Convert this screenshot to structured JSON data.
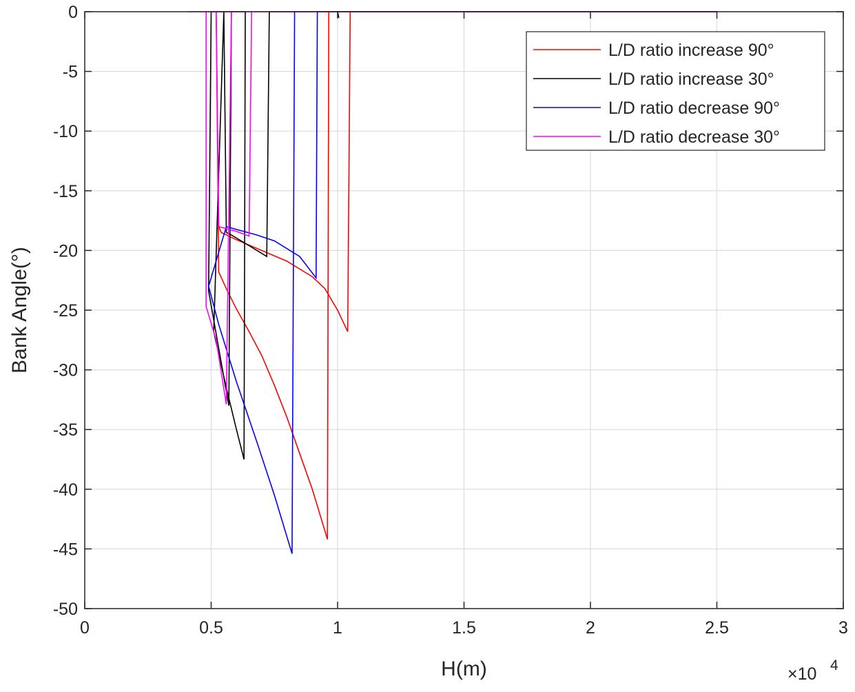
{
  "chart_data": {
    "type": "line",
    "title": "",
    "xlabel": "H(m)",
    "ylabel": "Bank Angle(°)",
    "x_exponent_base": "×10",
    "x_exponent_power": "4",
    "xlim": [
      0,
      30000
    ],
    "ylim": [
      -50,
      0
    ],
    "x_ticks": [
      0,
      5000,
      10000,
      15000,
      20000,
      25000,
      30000
    ],
    "x_tick_labels": [
      "0",
      "0.5",
      "1",
      "1.5",
      "2",
      "2.5",
      "3"
    ],
    "y_ticks": [
      0,
      -5,
      -10,
      -15,
      -20,
      -25,
      -30,
      -35,
      -40,
      -45,
      -50
    ],
    "y_tick_labels": [
      "0",
      "-5",
      "-10",
      "-15",
      "-20",
      "-25",
      "-30",
      "-35",
      "-40",
      "-45",
      "-50"
    ],
    "grid": true,
    "legend_position": "top-right",
    "series": [
      {
        "name": "L/D ratio increase 90°",
        "color": "#ff0000",
        "points": [
          [
            25000,
            0
          ],
          [
            10500,
            0
          ],
          [
            10400,
            -26.8
          ],
          [
            10000,
            -25
          ],
          [
            9500,
            -23.2
          ],
          [
            9000,
            -22.2
          ],
          [
            8000,
            -20.9
          ],
          [
            7000,
            -20
          ],
          [
            6000,
            -19.1
          ],
          [
            5400,
            -18.5
          ],
          [
            5300,
            -18
          ],
          [
            5200,
            0
          ],
          [
            5300,
            -21.8
          ],
          [
            5600,
            -23.2
          ],
          [
            6000,
            -24.9
          ],
          [
            6500,
            -26.8
          ],
          [
            7000,
            -28.8
          ],
          [
            7500,
            -31.3
          ],
          [
            8000,
            -34
          ],
          [
            8500,
            -37
          ],
          [
            9000,
            -40
          ],
          [
            9600,
            -44.2
          ],
          [
            9650,
            0
          ]
        ]
      },
      {
        "name": "L/D ratio increase 30°",
        "color": "#000000",
        "points": [
          [
            25000,
            0
          ],
          [
            10000,
            0
          ],
          [
            10050,
            -0.5
          ],
          [
            10000,
            0
          ],
          [
            7300,
            0
          ],
          [
            7200,
            -20.5
          ],
          [
            6500,
            -19.6
          ],
          [
            5800,
            -18.7
          ],
          [
            5600,
            -18.5
          ],
          [
            5500,
            0
          ],
          [
            5100,
            -26.8
          ],
          [
            5600,
            -31.5
          ],
          [
            6000,
            -35
          ],
          [
            6300,
            -37.5
          ],
          [
            6350,
            0
          ],
          [
            5000,
            0
          ],
          [
            4900,
            -23.4
          ],
          [
            5200,
            -27
          ],
          [
            5700,
            -33
          ],
          [
            5800,
            0
          ]
        ]
      },
      {
        "name": "L/D ratio decrease 90°",
        "color": "#0000ff",
        "points": [
          [
            25000,
            0
          ],
          [
            9200,
            0
          ],
          [
            9150,
            -22.3
          ],
          [
            8500,
            -20.5
          ],
          [
            7500,
            -19.2
          ],
          [
            6800,
            -18.7
          ],
          [
            5600,
            -18
          ],
          [
            4900,
            -23
          ],
          [
            5300,
            -26.2
          ],
          [
            6000,
            -31
          ],
          [
            6800,
            -36
          ],
          [
            7500,
            -40.5
          ],
          [
            8200,
            -45.4
          ],
          [
            8300,
            0
          ]
        ]
      },
      {
        "name": "L/D ratio decrease 30°",
        "color": "#ff00ff",
        "points": [
          [
            4100,
            0
          ],
          [
            25000,
            0
          ],
          [
            6600,
            0
          ],
          [
            6500,
            -18.8
          ],
          [
            6000,
            -18.4
          ],
          [
            5300,
            -18
          ],
          [
            5200,
            0
          ],
          [
            4800,
            0
          ],
          [
            4800,
            -24.7
          ],
          [
            5200,
            -27.5
          ],
          [
            5600,
            -32.9
          ],
          [
            5800,
            0
          ]
        ]
      }
    ]
  }
}
